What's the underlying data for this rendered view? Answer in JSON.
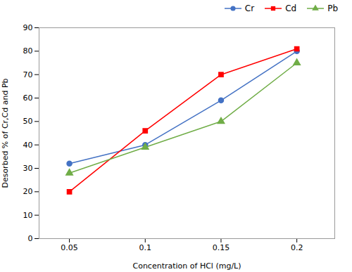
{
  "chart_data": {
    "type": "line",
    "xlabel": "Concentration of HCl (mg/L)",
    "ylabel": "Desorbed % of Cr,Cd and Pb",
    "x": [
      0.05,
      0.1,
      0.15,
      0.2
    ],
    "series": [
      {
        "name": "Cr",
        "color": "#4472C4",
        "marker": "circle",
        "values": [
          32,
          40,
          59,
          80
        ]
      },
      {
        "name": "Cd",
        "color": "#FF0000",
        "marker": "square",
        "values": [
          20,
          46,
          70,
          81
        ]
      },
      {
        "name": "Pb",
        "color": "#70AD47",
        "marker": "triangle",
        "values": [
          28,
          39,
          50,
          75
        ]
      }
    ],
    "xlim": [
      0.03,
      0.225
    ],
    "ylim": [
      0,
      90
    ],
    "xticks": [
      0.05,
      0.1,
      0.15,
      0.2
    ],
    "yticks": [
      0,
      10,
      20,
      30,
      40,
      50,
      60,
      70,
      80,
      90
    ],
    "grid": false,
    "legend": "upper right"
  }
}
